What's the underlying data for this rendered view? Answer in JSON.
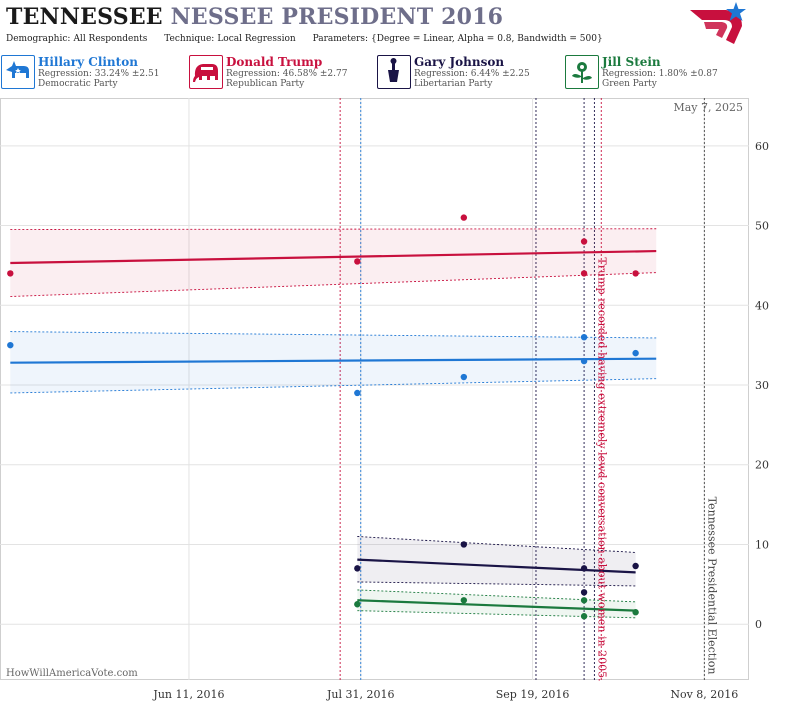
{
  "title": {
    "part1": "TENNESSEE",
    "part2": "NESSEE PRESIDENT 2016"
  },
  "params": {
    "demographic_label": "Demographic:",
    "demographic_value": "All Respondents",
    "technique_label": "Technique:",
    "technique_value": "Local Regression",
    "parameters_label": "Parameters:",
    "parameters_value": "{Degree = Linear, Alpha = 0.8, Bandwidth = 500}"
  },
  "candidates": [
    {
      "name": "Hillary Clinton",
      "regression": "Regression: 33.24% ±2.51",
      "party": "Democratic Party",
      "color": "#1f77d4",
      "bg": "#e6f0fb",
      "icon": "donkey-icon"
    },
    {
      "name": "Donald Trump",
      "regression": "Regression: 46.58% ±2.77",
      "party": "Republican Party",
      "color": "#c8103e",
      "bg": "#fbe8ec",
      "icon": "elephant-icon"
    },
    {
      "name": "Gary Johnson",
      "regression": "Regression: 6.44% ±2.25",
      "party": "Libertarian Party",
      "color": "#1a1446",
      "bg": "#e8e8f0",
      "icon": "liberty-torch-icon"
    },
    {
      "name": "Jill Stein",
      "regression": "Regression: 1.80% ±0.87",
      "party": "Green Party",
      "color": "#1b7a3e",
      "bg": "#e6f3ea",
      "icon": "flower-icon"
    }
  ],
  "footer": "HowWillAmericaVote.com",
  "chart_data": {
    "type": "line",
    "date_label": "May 7, 2025",
    "x_tick_labels": [
      "Jun 11, 2016",
      "Jul 31, 2016",
      "Sep 19, 2016",
      "Nov 8, 2016"
    ],
    "x_ticks": [
      "2016-06-11",
      "2016-07-31",
      "2016-09-19",
      "2016-11-08"
    ],
    "xlim": [
      "2016-04-17",
      "2016-11-21"
    ],
    "ylim": [
      -7,
      66
    ],
    "y_ticks": [
      0,
      10,
      20,
      30,
      40,
      50,
      60
    ],
    "grid": true,
    "annotations": [
      {
        "text": "Trump recorded having extremely lewd conversation about women in 2005.",
        "date": "2016-10-07",
        "color": "#c8103e"
      },
      {
        "text": "Tennessee Presidential Election",
        "date": "2016-11-08",
        "color": "#444444"
      }
    ],
    "event_lines": [
      {
        "date": "2016-07-25",
        "color": "#c8103e"
      },
      {
        "date": "2016-07-31",
        "color": "#1f77d4"
      },
      {
        "date": "2016-09-20",
        "color": "#1a1446"
      },
      {
        "date": "2016-10-04",
        "color": "#1a1446"
      },
      {
        "date": "2016-10-07",
        "color": "#1a1446"
      },
      {
        "date": "2016-10-09",
        "color": "#c8103e"
      },
      {
        "date": "2016-11-08",
        "color": "#444444"
      }
    ],
    "series": [
      {
        "name": "Hillary Clinton",
        "color": "#1f77d4",
        "x": [
          "2016-04-20",
          "2016-10-25"
        ],
        "y": [
          32.8,
          33.3
        ],
        "upper": [
          36.7,
          35.9
        ],
        "lower": [
          29.0,
          30.8
        ],
        "points": [
          [
            "2016-04-20",
            35
          ],
          [
            "2016-07-30",
            29
          ],
          [
            "2016-08-30",
            31
          ],
          [
            "2016-10-04",
            36
          ],
          [
            "2016-10-04",
            33
          ],
          [
            "2016-10-19",
            34
          ]
        ]
      },
      {
        "name": "Donald Trump",
        "color": "#c8103e",
        "x": [
          "2016-04-20",
          "2016-10-25"
        ],
        "y": [
          45.3,
          46.8
        ],
        "upper": [
          49.5,
          49.6
        ],
        "lower": [
          41.1,
          44.1
        ],
        "points": [
          [
            "2016-04-20",
            44
          ],
          [
            "2016-07-30",
            45.5
          ],
          [
            "2016-08-30",
            51
          ],
          [
            "2016-10-04",
            48
          ],
          [
            "2016-10-04",
            44
          ],
          [
            "2016-10-19",
            44
          ]
        ]
      },
      {
        "name": "Gary Johnson",
        "color": "#1a1446",
        "x": [
          "2016-07-30",
          "2016-10-19"
        ],
        "y": [
          8.1,
          6.5
        ],
        "upper": [
          11.0,
          9.0
        ],
        "lower": [
          5.3,
          4.8
        ],
        "points": [
          [
            "2016-07-30",
            7
          ],
          [
            "2016-08-30",
            10
          ],
          [
            "2016-10-04",
            7
          ],
          [
            "2016-10-04",
            4
          ],
          [
            "2016-10-19",
            7.3
          ]
        ]
      },
      {
        "name": "Jill Stein",
        "color": "#1b7a3e",
        "x": [
          "2016-07-30",
          "2016-10-19"
        ],
        "y": [
          3.0,
          1.7
        ],
        "upper": [
          4.3,
          2.8
        ],
        "lower": [
          1.7,
          0.8
        ],
        "points": [
          [
            "2016-07-30",
            2.5
          ],
          [
            "2016-08-30",
            3
          ],
          [
            "2016-10-04",
            3
          ],
          [
            "2016-10-04",
            1
          ],
          [
            "2016-10-19",
            1.5
          ]
        ]
      }
    ]
  }
}
